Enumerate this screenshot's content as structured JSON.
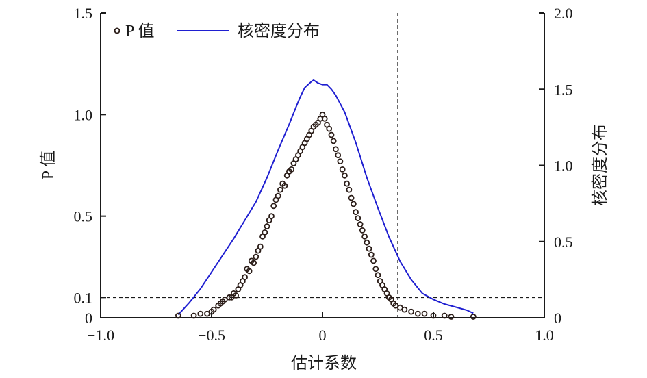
{
  "chart_data": {
    "type": "scatter",
    "xlabel": "估计系数",
    "ylabel": "P 值",
    "y2label": "核密度分布",
    "xlim": [
      -1.0,
      1.0
    ],
    "ylim": [
      0,
      1.5
    ],
    "y2lim": [
      0,
      2.0
    ],
    "x_ticks": [
      -1.0,
      -0.5,
      0,
      0.5,
      1.0
    ],
    "x_tick_labels": [
      "−1.0",
      "−0.5",
      "0",
      "0.5",
      "1.0"
    ],
    "y_ticks": [
      0,
      0.1,
      0.5,
      1.0,
      1.5
    ],
    "y_tick_labels": [
      "0",
      "0.1",
      "0.5",
      "1.0",
      "1.5"
    ],
    "y2_ticks": [
      0,
      0.5,
      1.0,
      1.5,
      2.0
    ],
    "y2_tick_labels": [
      "0",
      "0.5",
      "1.0",
      "1.5",
      "2.0"
    ],
    "reference_lines": {
      "horizontal_p": 0.1,
      "vertical_x": 0.34
    },
    "legend": {
      "position": "top-left",
      "entries": [
        {
          "label": "P 值",
          "marker": "circle"
        },
        {
          "label": "核密度分布",
          "marker": "line"
        }
      ]
    },
    "series": [
      {
        "name": "P 值",
        "type": "scatter",
        "axis": "left",
        "color": "#2b1d18",
        "points": [
          [
            -0.65,
            0.01
          ],
          [
            -0.58,
            0.01
          ],
          [
            -0.55,
            0.02
          ],
          [
            -0.52,
            0.02
          ],
          [
            -0.5,
            0.03
          ],
          [
            -0.49,
            0.04
          ],
          [
            -0.47,
            0.06
          ],
          [
            -0.46,
            0.07
          ],
          [
            -0.45,
            0.08
          ],
          [
            -0.44,
            0.09
          ],
          [
            -0.42,
            0.1
          ],
          [
            -0.41,
            0.1
          ],
          [
            -0.4,
            0.12
          ],
          [
            -0.39,
            0.11
          ],
          [
            -0.38,
            0.14
          ],
          [
            -0.37,
            0.16
          ],
          [
            -0.36,
            0.18
          ],
          [
            -0.35,
            0.2
          ],
          [
            -0.34,
            0.24
          ],
          [
            -0.33,
            0.23
          ],
          [
            -0.32,
            0.28
          ],
          [
            -0.31,
            0.27
          ],
          [
            -0.3,
            0.3
          ],
          [
            -0.29,
            0.33
          ],
          [
            -0.28,
            0.35
          ],
          [
            -0.27,
            0.4
          ],
          [
            -0.26,
            0.42
          ],
          [
            -0.25,
            0.45
          ],
          [
            -0.24,
            0.48
          ],
          [
            -0.23,
            0.5
          ],
          [
            -0.22,
            0.55
          ],
          [
            -0.21,
            0.58
          ],
          [
            -0.2,
            0.6
          ],
          [
            -0.19,
            0.63
          ],
          [
            -0.18,
            0.66
          ],
          [
            -0.17,
            0.65
          ],
          [
            -0.16,
            0.7
          ],
          [
            -0.15,
            0.72
          ],
          [
            -0.14,
            0.73
          ],
          [
            -0.13,
            0.76
          ],
          [
            -0.12,
            0.78
          ],
          [
            -0.11,
            0.8
          ],
          [
            -0.1,
            0.82
          ],
          [
            -0.09,
            0.84
          ],
          [
            -0.08,
            0.86
          ],
          [
            -0.07,
            0.88
          ],
          [
            -0.06,
            0.9
          ],
          [
            -0.05,
            0.92
          ],
          [
            -0.04,
            0.94
          ],
          [
            -0.03,
            0.95
          ],
          [
            -0.02,
            0.96
          ],
          [
            -0.01,
            0.98
          ],
          [
            0.0,
            1.0
          ],
          [
            0.01,
            0.98
          ],
          [
            0.02,
            0.95
          ],
          [
            0.03,
            0.93
          ],
          [
            0.04,
            0.9
          ],
          [
            0.05,
            0.87
          ],
          [
            0.06,
            0.83
          ],
          [
            0.07,
            0.8
          ],
          [
            0.08,
            0.77
          ],
          [
            0.09,
            0.73
          ],
          [
            0.1,
            0.7
          ],
          [
            0.11,
            0.66
          ],
          [
            0.12,
            0.63
          ],
          [
            0.13,
            0.59
          ],
          [
            0.14,
            0.56
          ],
          [
            0.15,
            0.52
          ],
          [
            0.16,
            0.49
          ],
          [
            0.17,
            0.46
          ],
          [
            0.18,
            0.43
          ],
          [
            0.19,
            0.4
          ],
          [
            0.2,
            0.37
          ],
          [
            0.21,
            0.34
          ],
          [
            0.22,
            0.31
          ],
          [
            0.23,
            0.28
          ],
          [
            0.24,
            0.24
          ],
          [
            0.25,
            0.21
          ],
          [
            0.26,
            0.18
          ],
          [
            0.27,
            0.16
          ],
          [
            0.28,
            0.14
          ],
          [
            0.29,
            0.12
          ],
          [
            0.3,
            0.1
          ],
          [
            0.31,
            0.09
          ],
          [
            0.32,
            0.07
          ],
          [
            0.33,
            0.06
          ],
          [
            0.35,
            0.05
          ],
          [
            0.37,
            0.04
          ],
          [
            0.4,
            0.03
          ],
          [
            0.43,
            0.02
          ],
          [
            0.46,
            0.02
          ],
          [
            0.5,
            0.01
          ],
          [
            0.55,
            0.01
          ],
          [
            0.58,
            0.005
          ],
          [
            0.68,
            0.005
          ]
        ]
      },
      {
        "name": "核密度分布",
        "type": "line",
        "axis": "right",
        "color": "#1f1fd1",
        "points": [
          [
            -0.65,
            0.02
          ],
          [
            -0.6,
            0.1
          ],
          [
            -0.55,
            0.19
          ],
          [
            -0.5,
            0.3
          ],
          [
            -0.45,
            0.41
          ],
          [
            -0.4,
            0.52
          ],
          [
            -0.35,
            0.64
          ],
          [
            -0.3,
            0.76
          ],
          [
            -0.25,
            0.92
          ],
          [
            -0.2,
            1.1
          ],
          [
            -0.15,
            1.27
          ],
          [
            -0.12,
            1.38
          ],
          [
            -0.1,
            1.45
          ],
          [
            -0.08,
            1.51
          ],
          [
            -0.05,
            1.55
          ],
          [
            -0.04,
            1.56
          ],
          [
            -0.02,
            1.54
          ],
          [
            0.0,
            1.53
          ],
          [
            0.02,
            1.53
          ],
          [
            0.04,
            1.5
          ],
          [
            0.06,
            1.46
          ],
          [
            0.1,
            1.35
          ],
          [
            0.15,
            1.15
          ],
          [
            0.2,
            0.92
          ],
          [
            0.25,
            0.72
          ],
          [
            0.3,
            0.53
          ],
          [
            0.35,
            0.37
          ],
          [
            0.4,
            0.25
          ],
          [
            0.45,
            0.16
          ],
          [
            0.5,
            0.12
          ],
          [
            0.55,
            0.09
          ],
          [
            0.6,
            0.07
          ],
          [
            0.65,
            0.05
          ],
          [
            0.68,
            0.03
          ]
        ]
      }
    ]
  }
}
